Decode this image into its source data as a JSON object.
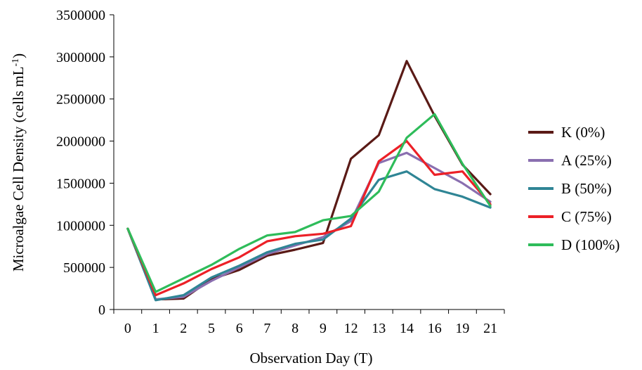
{
  "chart_data": {
    "type": "line",
    "xlabel": "Observation Day (T)",
    "ylabel_main": "Microalgae Cell Density (cells mL",
    "ylabel_sup": "-1",
    "ylabel_end": ")",
    "ylim": [
      0,
      3500000
    ],
    "yticks": [
      "0",
      "500000",
      "1000000",
      "1500000",
      "2000000",
      "2500000",
      "3000000",
      "3500000"
    ],
    "categories": [
      "0",
      "1",
      "2",
      "5",
      "6",
      "7",
      "8",
      "9",
      "12",
      "13",
      "14",
      "16",
      "19",
      "21"
    ],
    "legend_position": "right",
    "grid": false,
    "series": [
      {
        "name": "K (0%)",
        "color": "#5a1a16",
        "values": [
          960000,
          120000,
          130000,
          360000,
          470000,
          640000,
          710000,
          790000,
          1790000,
          2070000,
          2950000,
          2300000,
          1720000,
          1370000
        ]
      },
      {
        "name": "A (25%)",
        "color": "#8a6fb0",
        "values": [
          960000,
          120000,
          150000,
          340000,
          500000,
          660000,
          760000,
          860000,
          1050000,
          1740000,
          1860000,
          1680000,
          1500000,
          1280000
        ]
      },
      {
        "name": "B (50%)",
        "color": "#2f8595",
        "values": [
          960000,
          110000,
          170000,
          380000,
          520000,
          680000,
          780000,
          830000,
          1080000,
          1540000,
          1640000,
          1430000,
          1340000,
          1210000
        ]
      },
      {
        "name": "C (75%)",
        "color": "#ec2027",
        "values": [
          960000,
          170000,
          310000,
          480000,
          620000,
          810000,
          870000,
          900000,
          990000,
          1760000,
          2000000,
          1600000,
          1640000,
          1250000
        ]
      },
      {
        "name": "D (100%)",
        "color": "#2ebc5a",
        "values": [
          960000,
          210000,
          370000,
          530000,
          720000,
          880000,
          920000,
          1060000,
          1110000,
          1400000,
          2040000,
          2320000,
          1730000,
          1230000
        ]
      }
    ]
  }
}
